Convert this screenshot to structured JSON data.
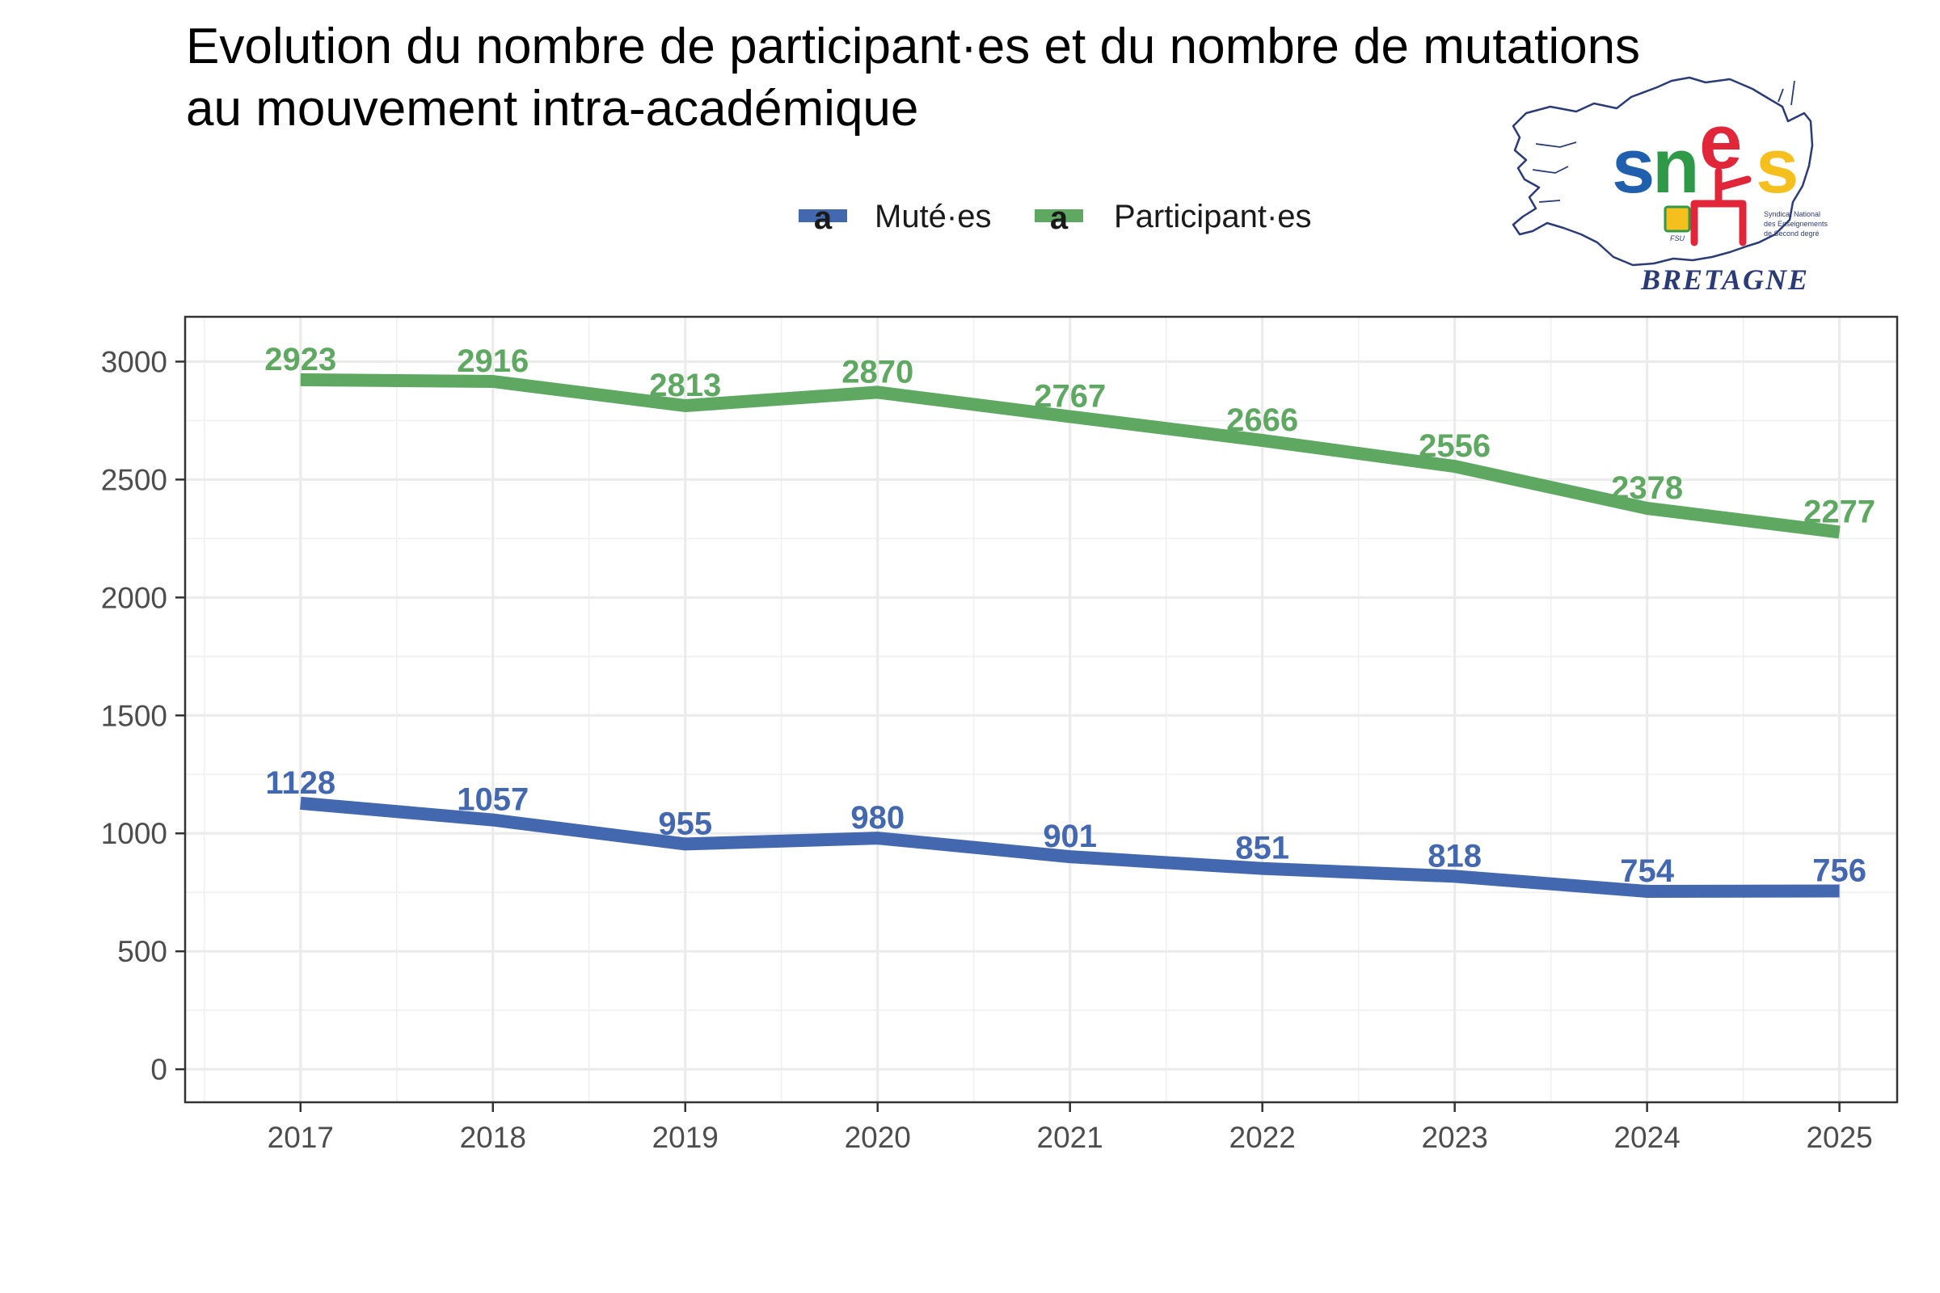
{
  "chart_data": {
    "type": "line",
    "title": "Evolution du nombre de participant·es et du nombre de mutations au mouvement intra-académique",
    "title_lines": [
      "Evolution du nombre de participant·es et du nombre de mutations",
      "au mouvement intra-académique"
    ],
    "xlabel": "",
    "ylabel": "",
    "x": [
      2017,
      2018,
      2019,
      2020,
      2021,
      2022,
      2023,
      2024,
      2025
    ],
    "x_tick_labels": [
      "2017",
      "2018",
      "2019",
      "2020",
      "2021",
      "2022",
      "2023",
      "2024",
      "2025"
    ],
    "y_ticks": [
      0,
      500,
      1000,
      1500,
      2000,
      2500,
      3000
    ],
    "y_tick_labels": [
      "0",
      "500",
      "1000",
      "1500",
      "2000",
      "2500",
      "3000"
    ],
    "ylim": [
      -140,
      3190
    ],
    "xlim": [
      2016.4,
      2025.3
    ],
    "grid": true,
    "legend_position": "top",
    "legend_key_glyph": "a",
    "series": [
      {
        "name": "Muté·es",
        "color": "#4468b0",
        "values": [
          1128,
          1057,
          955,
          980,
          901,
          851,
          818,
          754,
          756
        ],
        "labels": [
          "1128",
          "1057",
          "955",
          "980",
          "901",
          "851",
          "818",
          "754",
          "756"
        ]
      },
      {
        "name": "Participant·es",
        "color": "#5fa862",
        "values": [
          2923,
          2916,
          2813,
          2870,
          2767,
          2666,
          2556,
          2378,
          2277
        ],
        "labels": [
          "2923",
          "2916",
          "2813",
          "2870",
          "2767",
          "2666",
          "2556",
          "2378",
          "2277"
        ]
      }
    ]
  },
  "logo": {
    "brand_s": "s",
    "brand_n": "n",
    "brand_e": "e",
    "brand_s2": "s",
    "org_line1": "Syndicat National",
    "org_line2": "des Enseignements",
    "org_line3": "de Second degré",
    "affiliation": "FSU",
    "region": "BRETAGNE",
    "colors": {
      "blue": "#1f5fae",
      "green": "#2e9a47",
      "red": "#e2263a",
      "yellow": "#f5c01e",
      "navy": "#2b3b78"
    }
  }
}
